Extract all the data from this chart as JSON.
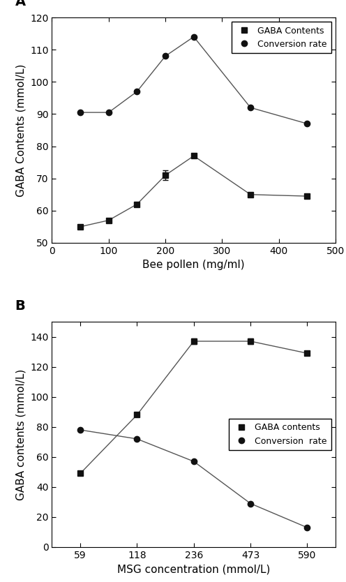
{
  "panel_A": {
    "title": "A",
    "xlabel": "Bee pollen (mg/ml)",
    "ylabel": "GABA Contents (mmol/L)",
    "xlim": [
      0,
      500
    ],
    "ylim": [
      50,
      120
    ],
    "yticks": [
      50,
      60,
      70,
      80,
      90,
      100,
      110,
      120
    ],
    "xticks": [
      0,
      100,
      200,
      300,
      400,
      500
    ],
    "gaba_x": [
      50,
      100,
      150,
      200,
      250,
      350,
      450
    ],
    "gaba_y": [
      55,
      57,
      62,
      71,
      77,
      65,
      64.5
    ],
    "gaba_yerr": [
      0,
      0,
      0,
      1.5,
      0,
      0,
      0
    ],
    "conv_x": [
      50,
      100,
      150,
      200,
      250,
      350,
      450
    ],
    "conv_y": [
      90.5,
      90.5,
      97,
      108,
      114,
      92,
      87
    ],
    "conv_yerr": [
      0,
      0,
      0,
      0,
      0,
      0,
      0
    ],
    "legend_gaba": "GABA Contents",
    "legend_conv": "Conversion rate"
  },
  "panel_B": {
    "title": "B",
    "xlabel": "MSG concentration (mmol/L)",
    "ylabel": "GABA contents (mmol/L)",
    "xticklabels": [
      "59",
      "118",
      "236",
      "473",
      "590"
    ],
    "ylim": [
      0,
      150
    ],
    "yticks": [
      0,
      20,
      40,
      60,
      80,
      100,
      120,
      140
    ],
    "gaba_x": [
      0,
      1,
      2,
      3,
      4
    ],
    "gaba_y": [
      49,
      88,
      137,
      137,
      129
    ],
    "gaba_yerr": [
      1.0,
      0,
      2.0,
      2.0,
      0
    ],
    "conv_x": [
      0,
      1,
      2,
      3,
      4
    ],
    "conv_y": [
      78,
      72,
      57,
      29,
      13
    ],
    "conv_yerr": [
      0,
      0,
      0,
      0,
      0
    ],
    "legend_gaba": "GABA contents",
    "legend_conv": "Conversion  rate"
  },
  "line_color": "#555555",
  "marker_color": "#111111",
  "marker_square": "s",
  "marker_circle": "o",
  "markersize": 6,
  "linewidth": 1.0,
  "capsize": 3,
  "tick_fontsize": 10,
  "label_fontsize": 11,
  "legend_fontsize": 9,
  "panel_label_fontsize": 14
}
